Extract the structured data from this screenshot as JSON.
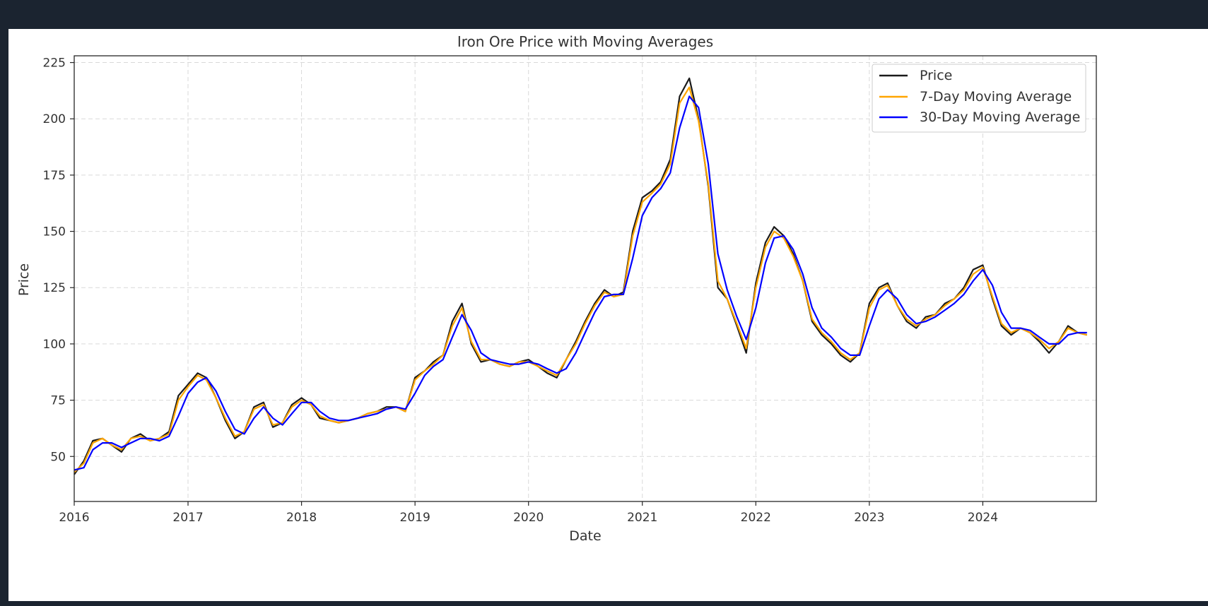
{
  "chart_data": {
    "type": "line",
    "title": "Iron Ore Price with Moving Averages",
    "xlabel": "Date",
    "ylabel": "Price",
    "xlim": [
      "2016-01-01",
      "2024-12-31"
    ],
    "ylim": [
      30,
      228
    ],
    "x_ticks": [
      "2016",
      "2017",
      "2018",
      "2019",
      "2020",
      "2021",
      "2022",
      "2023",
      "2024"
    ],
    "y_ticks": [
      50,
      75,
      100,
      125,
      150,
      175,
      200,
      225
    ],
    "grid": true,
    "legend_position": "top-right",
    "series": [
      {
        "name": "Price",
        "color": "#1a1a1a",
        "x": [
          "2016-01-01",
          "2016-02-01",
          "2016-03-01",
          "2016-04-01",
          "2016-05-01",
          "2016-06-01",
          "2016-07-01",
          "2016-08-01",
          "2016-09-01",
          "2016-10-01",
          "2016-11-01",
          "2016-12-01",
          "2017-01-01",
          "2017-02-01",
          "2017-03-01",
          "2017-04-01",
          "2017-05-01",
          "2017-06-01",
          "2017-07-01",
          "2017-08-01",
          "2017-09-01",
          "2017-10-01",
          "2017-11-01",
          "2017-12-01",
          "2018-01-01",
          "2018-02-01",
          "2018-03-01",
          "2018-04-01",
          "2018-05-01",
          "2018-06-01",
          "2018-07-01",
          "2018-08-01",
          "2018-09-01",
          "2018-10-01",
          "2018-11-01",
          "2018-12-01",
          "2019-01-01",
          "2019-02-01",
          "2019-03-01",
          "2019-04-01",
          "2019-05-01",
          "2019-06-01",
          "2019-07-01",
          "2019-08-01",
          "2019-09-01",
          "2019-10-01",
          "2019-11-01",
          "2019-12-01",
          "2020-01-01",
          "2020-02-01",
          "2020-03-01",
          "2020-04-01",
          "2020-05-01",
          "2020-06-01",
          "2020-07-01",
          "2020-08-01",
          "2020-09-01",
          "2020-10-01",
          "2020-11-01",
          "2020-12-01",
          "2021-01-01",
          "2021-02-01",
          "2021-03-01",
          "2021-04-01",
          "2021-05-01",
          "2021-06-01",
          "2021-07-01",
          "2021-08-01",
          "2021-09-01",
          "2021-10-01",
          "2021-11-01",
          "2021-12-01",
          "2022-01-01",
          "2022-02-01",
          "2022-03-01",
          "2022-04-01",
          "2022-05-01",
          "2022-06-01",
          "2022-07-01",
          "2022-08-01",
          "2022-09-01",
          "2022-10-01",
          "2022-11-01",
          "2022-12-01",
          "2023-01-01",
          "2023-02-01",
          "2023-03-01",
          "2023-04-01",
          "2023-05-01",
          "2023-06-01",
          "2023-07-01",
          "2023-08-01",
          "2023-09-01",
          "2023-10-01",
          "2023-11-01",
          "2023-12-01",
          "2024-01-01",
          "2024-02-01",
          "2024-03-01",
          "2024-04-01",
          "2024-05-01",
          "2024-06-01",
          "2024-07-01",
          "2024-08-01",
          "2024-09-01",
          "2024-10-01",
          "2024-11-01",
          "2024-12-01"
        ],
        "y": [
          42,
          48,
          57,
          58,
          55,
          52,
          58,
          60,
          57,
          58,
          61,
          77,
          82,
          87,
          85,
          76,
          66,
          58,
          61,
          72,
          74,
          63,
          65,
          73,
          76,
          73,
          67,
          66,
          65,
          66,
          67,
          69,
          70,
          72,
          72,
          70,
          85,
          88,
          92,
          95,
          110,
          118,
          100,
          92,
          93,
          91,
          90,
          92,
          93,
          90,
          87,
          85,
          93,
          101,
          110,
          118,
          124,
          121,
          123,
          150,
          165,
          168,
          172,
          182,
          210,
          218,
          200,
          170,
          125,
          120,
          108,
          96,
          127,
          145,
          152,
          148,
          140,
          128,
          110,
          104,
          100,
          95,
          92,
          96,
          118,
          125,
          127,
          117,
          110,
          107,
          112,
          113,
          118,
          120,
          125,
          133,
          135,
          120,
          108,
          104,
          107,
          105,
          101,
          96,
          101,
          108,
          105,
          104
        ]
      },
      {
        "name": "7-Day Moving Average",
        "color": "#ffa500",
        "x": [
          "2016-01-01",
          "2016-02-01",
          "2016-03-01",
          "2016-04-01",
          "2016-05-01",
          "2016-06-01",
          "2016-07-01",
          "2016-08-01",
          "2016-09-01",
          "2016-10-01",
          "2016-11-01",
          "2016-12-01",
          "2017-01-01",
          "2017-02-01",
          "2017-03-01",
          "2017-04-01",
          "2017-05-01",
          "2017-06-01",
          "2017-07-01",
          "2017-08-01",
          "2017-09-01",
          "2017-10-01",
          "2017-11-01",
          "2017-12-01",
          "2018-01-01",
          "2018-02-01",
          "2018-03-01",
          "2018-04-01",
          "2018-05-01",
          "2018-06-01",
          "2018-07-01",
          "2018-08-01",
          "2018-09-01",
          "2018-10-01",
          "2018-11-01",
          "2018-12-01",
          "2019-01-01",
          "2019-02-01",
          "2019-03-01",
          "2019-04-01",
          "2019-05-01",
          "2019-06-01",
          "2019-07-01",
          "2019-08-01",
          "2019-09-01",
          "2019-10-01",
          "2019-11-01",
          "2019-12-01",
          "2020-01-01",
          "2020-02-01",
          "2020-03-01",
          "2020-04-01",
          "2020-05-01",
          "2020-06-01",
          "2020-07-01",
          "2020-08-01",
          "2020-09-01",
          "2020-10-01",
          "2020-11-01",
          "2020-12-01",
          "2021-01-01",
          "2021-02-01",
          "2021-03-01",
          "2021-04-01",
          "2021-05-01",
          "2021-06-01",
          "2021-07-01",
          "2021-08-01",
          "2021-09-01",
          "2021-10-01",
          "2021-11-01",
          "2021-12-01",
          "2022-01-01",
          "2022-02-01",
          "2022-03-01",
          "2022-04-01",
          "2022-05-01",
          "2022-06-01",
          "2022-07-01",
          "2022-08-01",
          "2022-09-01",
          "2022-10-01",
          "2022-11-01",
          "2022-12-01",
          "2023-01-01",
          "2023-02-01",
          "2023-03-01",
          "2023-04-01",
          "2023-05-01",
          "2023-06-01",
          "2023-07-01",
          "2023-08-01",
          "2023-09-01",
          "2023-10-01",
          "2023-11-01",
          "2023-12-01",
          "2024-01-01",
          "2024-02-01",
          "2024-03-01",
          "2024-04-01",
          "2024-05-01",
          "2024-06-01",
          "2024-07-01",
          "2024-08-01",
          "2024-09-01",
          "2024-10-01",
          "2024-11-01",
          "2024-12-01"
        ],
        "y": [
          43,
          47,
          56,
          58,
          55,
          53,
          58,
          59,
          57,
          58,
          60,
          75,
          81,
          86,
          84,
          76,
          67,
          59,
          61,
          71,
          73,
          64,
          65,
          72,
          75,
          73,
          68,
          66,
          65,
          66,
          67,
          69,
          70,
          71,
          72,
          70,
          84,
          88,
          91,
          95,
          108,
          116,
          101,
          93,
          93,
          91,
          90,
          92,
          92,
          90,
          88,
          86,
          93,
          100,
          109,
          117,
          123,
          121,
          122,
          148,
          163,
          167,
          171,
          180,
          207,
          214,
          199,
          171,
          128,
          120,
          109,
          98,
          125,
          143,
          150,
          147,
          139,
          128,
          111,
          105,
          101,
          96,
          93,
          96,
          116,
          124,
          126,
          117,
          111,
          108,
          111,
          113,
          117,
          120,
          124,
          131,
          134,
          121,
          109,
          105,
          107,
          105,
          102,
          98,
          101,
          107,
          105,
          104
        ]
      },
      {
        "name": "30-Day Moving Average",
        "color": "#0000ff",
        "x": [
          "2016-01-01",
          "2016-02-01",
          "2016-03-01",
          "2016-04-01",
          "2016-05-01",
          "2016-06-01",
          "2016-07-01",
          "2016-08-01",
          "2016-09-01",
          "2016-10-01",
          "2016-11-01",
          "2016-12-01",
          "2017-01-01",
          "2017-02-01",
          "2017-03-01",
          "2017-04-01",
          "2017-05-01",
          "2017-06-01",
          "2017-07-01",
          "2017-08-01",
          "2017-09-01",
          "2017-10-01",
          "2017-11-01",
          "2017-12-01",
          "2018-01-01",
          "2018-02-01",
          "2018-03-01",
          "2018-04-01",
          "2018-05-01",
          "2018-06-01",
          "2018-07-01",
          "2018-08-01",
          "2018-09-01",
          "2018-10-01",
          "2018-11-01",
          "2018-12-01",
          "2019-01-01",
          "2019-02-01",
          "2019-03-01",
          "2019-04-01",
          "2019-05-01",
          "2019-06-01",
          "2019-07-01",
          "2019-08-01",
          "2019-09-01",
          "2019-10-01",
          "2019-11-01",
          "2019-12-01",
          "2020-01-01",
          "2020-02-01",
          "2020-03-01",
          "2020-04-01",
          "2020-05-01",
          "2020-06-01",
          "2020-07-01",
          "2020-08-01",
          "2020-09-01",
          "2020-10-01",
          "2020-11-01",
          "2020-12-01",
          "2021-01-01",
          "2021-02-01",
          "2021-03-01",
          "2021-04-01",
          "2021-05-01",
          "2021-06-01",
          "2021-07-01",
          "2021-08-01",
          "2021-09-01",
          "2021-10-01",
          "2021-11-01",
          "2021-12-01",
          "2022-01-01",
          "2022-02-01",
          "2022-03-01",
          "2022-04-01",
          "2022-05-01",
          "2022-06-01",
          "2022-07-01",
          "2022-08-01",
          "2022-09-01",
          "2022-10-01",
          "2022-11-01",
          "2022-12-01",
          "2023-01-01",
          "2023-02-01",
          "2023-03-01",
          "2023-04-01",
          "2023-05-01",
          "2023-06-01",
          "2023-07-01",
          "2023-08-01",
          "2023-09-01",
          "2023-10-01",
          "2023-11-01",
          "2023-12-01",
          "2024-01-01",
          "2024-02-01",
          "2024-03-01",
          "2024-04-01",
          "2024-05-01",
          "2024-06-01",
          "2024-07-01",
          "2024-08-01",
          "2024-09-01",
          "2024-10-01",
          "2024-11-01",
          "2024-12-01"
        ],
        "y": [
          44,
          45,
          53,
          56,
          56,
          54,
          56,
          58,
          58,
          57,
          59,
          68,
          78,
          83,
          85,
          79,
          70,
          62,
          60,
          67,
          72,
          67,
          64,
          69,
          74,
          74,
          70,
          67,
          66,
          66,
          67,
          68,
          69,
          71,
          72,
          71,
          78,
          86,
          90,
          93,
          103,
          113,
          106,
          96,
          93,
          92,
          91,
          91,
          92,
          91,
          89,
          87,
          89,
          96,
          105,
          114,
          121,
          122,
          122,
          138,
          157,
          165,
          169,
          176,
          196,
          210,
          205,
          180,
          140,
          124,
          112,
          102,
          116,
          136,
          147,
          148,
          142,
          131,
          116,
          107,
          103,
          98,
          95,
          95,
          108,
          120,
          124,
          120,
          113,
          109,
          110,
          112,
          115,
          118,
          122,
          128,
          133,
          126,
          114,
          107,
          107,
          106,
          103,
          100,
          100,
          104,
          105,
          105
        ]
      }
    ]
  }
}
